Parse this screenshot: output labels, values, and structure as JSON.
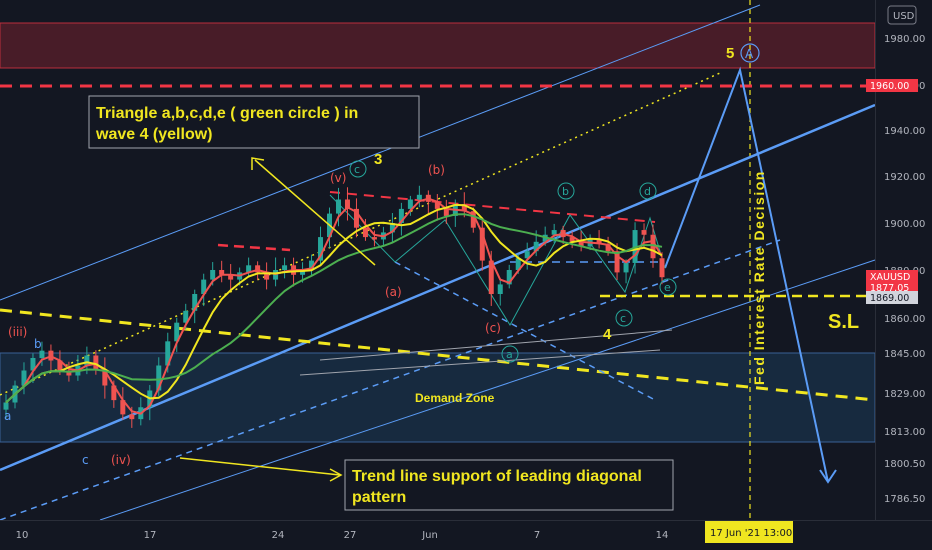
{
  "chart_data": {
    "type": "candlestick",
    "symbol": "XAUUSD",
    "currency": "USD",
    "x_ticks": [
      "10",
      "17",
      "24",
      "27",
      "Jun",
      "7",
      "14"
    ],
    "y_ticks": [
      "1980.00",
      "1960.00",
      "1940.00",
      "1920.00",
      "1900.00",
      "1880.00",
      "1860.00",
      "1845.00",
      "1829.00",
      "1813.00",
      "1800.50",
      "1786.50"
    ],
    "ylim": [
      1775,
      1995
    ],
    "price_tags": [
      {
        "label": "1960.00",
        "value": 1960,
        "color": "#f23645"
      },
      {
        "label": "XAUUSD",
        "value": 1879,
        "color": "#f23645"
      },
      {
        "label": "1877.05",
        "value": 1877,
        "color": "#f23645"
      },
      {
        "label": "1869.00",
        "value": 1869,
        "color": "#d1d4dc"
      }
    ],
    "date_tag": "17 Jun '21   13:00",
    "series_close": [
      1825,
      1832,
      1838,
      1843,
      1846,
      1842,
      1838,
      1836,
      1840,
      1844,
      1838,
      1832,
      1826,
      1820,
      1818,
      1823,
      1830,
      1840,
      1850,
      1858,
      1863,
      1870,
      1876,
      1880,
      1878,
      1876,
      1879,
      1882,
      1879,
      1876,
      1880,
      1882,
      1878,
      1880,
      1884,
      1894,
      1904,
      1910,
      1906,
      1898,
      1894,
      1893,
      1896,
      1900,
      1906,
      1910,
      1912,
      1909,
      1906,
      1903,
      1908,
      1905,
      1898,
      1884,
      1870,
      1874,
      1880,
      1885,
      1888,
      1892,
      1895,
      1897,
      1894,
      1892,
      1890,
      1893,
      1891,
      1888,
      1879,
      1883,
      1897,
      1895,
      1885,
      1877
    ],
    "annotations": {
      "triangle_note": "Triangle a,b,c,d,e ( green circle ) in wave 4 (yellow)",
      "trend_note": "Trend line support of leading diagonal pattern",
      "demand_zone": "Demand Zone",
      "fed_label": "Fed Interest Rate Decision",
      "sl_label": "S.L",
      "wave_5": "5",
      "wave_A": "A",
      "wave_3": "3",
      "wave_4": "4",
      "sub_v": "(v)",
      "sub_iii": "(iii)",
      "sub_iv": "(iv)",
      "sub_a_red": "(a)",
      "sub_b_red": "(b)",
      "sub_c_red": "(c)",
      "small_a": "a",
      "small_b": "b",
      "small_c": "c",
      "green_a": "a",
      "green_b": "b",
      "green_c": "c",
      "green_d": "d",
      "green_e": "e",
      "green_c_top": "c"
    }
  }
}
